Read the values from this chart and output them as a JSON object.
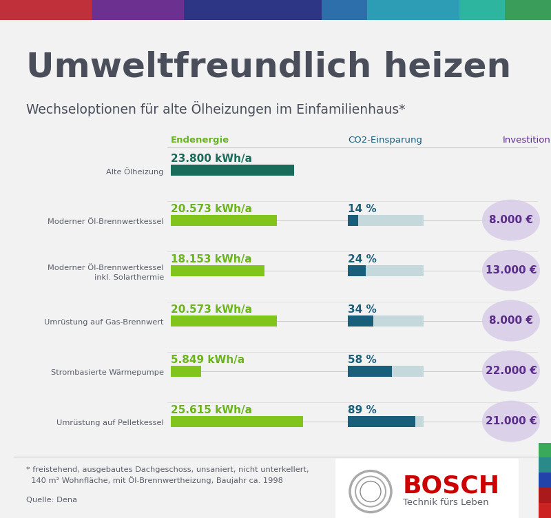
{
  "title_main": "Umweltfreundlich heizen",
  "title_sub": "Wechseloptionen für alte Ölheizungen im Einfamilienhaus*",
  "col_headers": [
    "Endenergie",
    "CO2-Einsparung",
    "Investition"
  ],
  "background_color": "#f2f2f2",
  "strip_colors": [
    "#c0303a",
    "#c0303a",
    "#6b3090",
    "#6b3090",
    "#2d3585",
    "#2d3585",
    "#2d3585",
    "#2d6faa",
    "#2d9db5",
    "#2d9db5",
    "#2db5a0",
    "#3a9e5a"
  ],
  "rows": [
    {
      "label": "Alte Ölheizung",
      "label2": "",
      "energy_val": "23.800 kWh/a",
      "energy_kwh": 23800,
      "co2_pct": null,
      "co2_label": "",
      "invest_val": "",
      "energy_bar_color": "#1b6b5a",
      "co2_bar_dark": null,
      "co2_bar_light": null,
      "invest_circle_color": null
    },
    {
      "label": "Moderner Öl-Brennwertkessel",
      "label2": "",
      "energy_val": "20.573 kWh/a",
      "energy_kwh": 20573,
      "co2_pct": 14,
      "co2_label": "14 %",
      "invest_val": "8.000 €",
      "energy_bar_color": "#80c41c",
      "co2_bar_dark": "#1a5f7a",
      "co2_bar_light": "#c5d8dc",
      "invest_circle_color": "#d8cce8"
    },
    {
      "label": "Moderner Öl-Brennwertkessel",
      "label2": "inkl. Solarthermie",
      "energy_val": "18.153 kWh/a",
      "energy_kwh": 18153,
      "co2_pct": 24,
      "co2_label": "24 %",
      "invest_val": "13.000 €",
      "energy_bar_color": "#80c41c",
      "co2_bar_dark": "#1a5f7a",
      "co2_bar_light": "#c5d8dc",
      "invest_circle_color": "#d8cce8"
    },
    {
      "label": "Umrüstung auf Gas-Brennwert",
      "label2": "",
      "energy_val": "20.573 kWh/a",
      "energy_kwh": 20573,
      "co2_pct": 34,
      "co2_label": "34 %",
      "invest_val": "8.000 €",
      "energy_bar_color": "#80c41c",
      "co2_bar_dark": "#1a5f7a",
      "co2_bar_light": "#c5d8dc",
      "invest_circle_color": "#d8cce8"
    },
    {
      "label": "Strombasierte Wärmepumpe",
      "label2": "",
      "energy_val": "5.849 kWh/a",
      "energy_kwh": 5849,
      "co2_pct": 58,
      "co2_label": "58 %",
      "invest_val": "22.000 €",
      "energy_bar_color": "#80c41c",
      "co2_bar_dark": "#1a5f7a",
      "co2_bar_light": "#c5d8dc",
      "invest_circle_color": "#d8cce8"
    },
    {
      "label": "Umrüstung auf Pelletkessel",
      "label2": "",
      "energy_val": "25.615 kWh/a",
      "energy_kwh": 25615,
      "co2_pct": 89,
      "co2_label": "89 %",
      "invest_val": "21.000 €",
      "energy_bar_color": "#80c41c",
      "co2_bar_dark": "#1a5f7a",
      "co2_bar_light": "#c5d8dc",
      "invest_circle_color": "#d8cce8"
    }
  ],
  "footnote1": "* freistehend, ausgebautes Dachgeschoss, unsaniert, nicht unterkellert,",
  "footnote2": "  140 m² Wohnfläche, mit Öl-Brennwertheizung, Baujahr ca. 1998",
  "source": "Quelle: Dena",
  "energy_max": 28000,
  "text_color_dark": "#4a4e5a",
  "text_color_green": "#6ab41c",
  "text_color_co2": "#1a5f7a",
  "text_color_invest": "#5a2d8a",
  "text_color_label": "#5a5e6a"
}
